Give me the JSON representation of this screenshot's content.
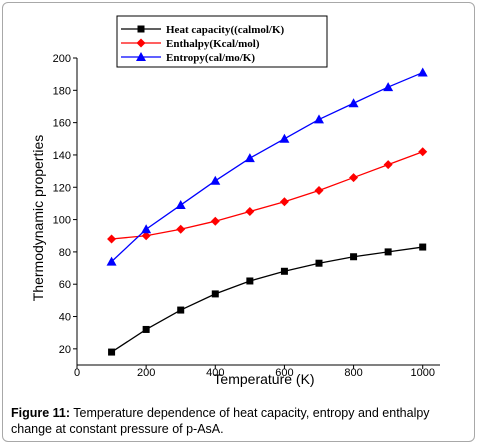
{
  "chart_data": {
    "type": "line",
    "xlabel": "Temperature (K)",
    "ylabel": "Thermodynamic properties",
    "xlim": [
      0,
      1050
    ],
    "ylim": [
      10,
      200
    ],
    "x_ticks": [
      "0",
      "200",
      "400",
      "600",
      "800",
      "1000"
    ],
    "y_ticks": [
      "20",
      "40",
      "60",
      "80",
      "100",
      "120",
      "140",
      "160",
      "180",
      "200"
    ],
    "x": [
      100,
      200,
      300,
      400,
      500,
      600,
      700,
      800,
      900,
      1000
    ],
    "series": [
      {
        "name": "Heat capacity((calmol/K)",
        "color": "#000000",
        "marker": "square",
        "values": [
          18,
          32,
          44,
          54,
          62,
          68,
          73,
          77,
          80,
          83
        ]
      },
      {
        "name": "Enthalpy(Kcal/mol)",
        "color": "#ff0000",
        "marker": "diamond",
        "values": [
          88,
          90,
          94,
          99,
          105,
          111,
          118,
          126,
          134,
          142
        ]
      },
      {
        "name": "Entropy(cal/mo/K)",
        "color": "#0000ff",
        "marker": "triangle",
        "values": [
          74,
          94,
          109,
          124,
          138,
          150,
          162,
          172,
          182,
          191
        ]
      }
    ],
    "legend_placement": "top"
  },
  "caption": {
    "label": "Figure 11:",
    "text": " Temperature dependence of heat capacity, entropy and enthalpy change at constant pressure of p-AsA."
  }
}
